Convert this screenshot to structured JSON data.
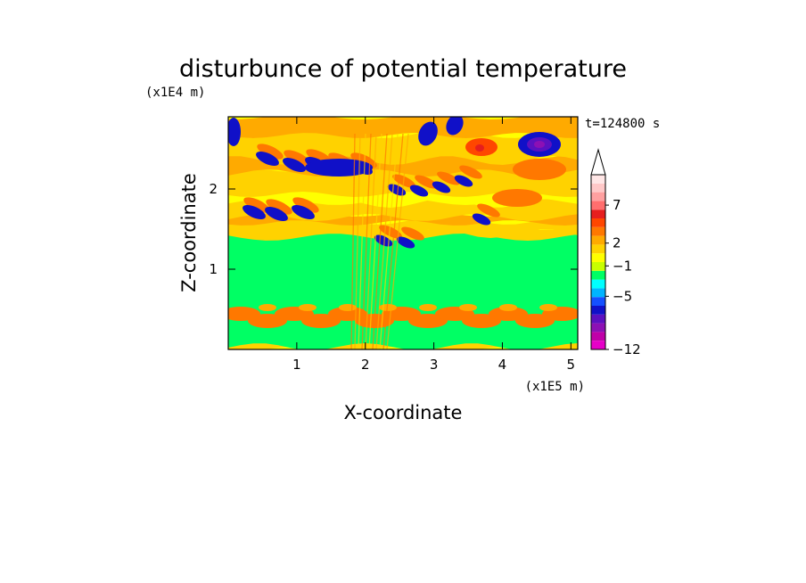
{
  "chart_data": {
    "type": "heatmap",
    "title": "disturbunce of potential temperature",
    "xlabel": "X-coordinate",
    "ylabel": "Z-coordinate",
    "x_unit": "(x1E5 m)",
    "y_unit": "(x1E4 m)",
    "time_label": "t=124800 s",
    "xlim": [
      0,
      5.1
    ],
    "ylim": [
      0,
      2.9
    ],
    "x_ticks": [
      1,
      2,
      3,
      4,
      5
    ],
    "y_ticks": [
      1,
      2
    ],
    "x_tick_labels": [
      "1",
      "2",
      "3",
      "4",
      "5"
    ],
    "y_tick_labels": [
      "1",
      "2"
    ],
    "colorbar": {
      "labeled_levels": [
        7,
        2,
        -1,
        -5,
        -12
      ],
      "labels": [
        "7",
        "2",
        "−1",
        "−5",
        "−12"
      ],
      "range": [
        -12,
        11
      ],
      "extend": "max",
      "colors": [
        "#e600c8",
        "#c000a8",
        "#8c10b4",
        "#5c10c0",
        "#1010c8",
        "#1450ff",
        "#00b4ff",
        "#00ffff",
        "#00ff64",
        "#c8ff00",
        "#ffff00",
        "#ffd200",
        "#ffaa00",
        "#ff7800",
        "#ff4600",
        "#e61e1e",
        "#ff6e6e",
        "#ffa0a0",
        "#ffc8c8",
        "#ffe6e6"
      ]
    }
  }
}
